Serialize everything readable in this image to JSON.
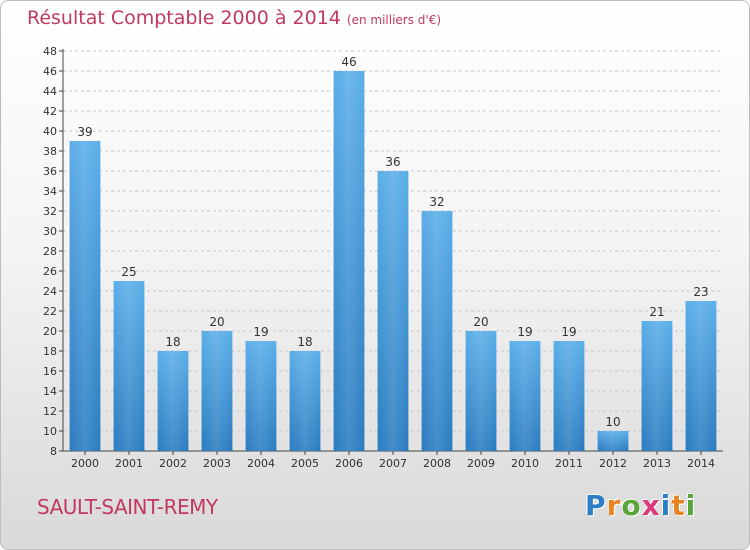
{
  "chart_data": {
    "type": "bar",
    "title": "Résultat Comptable 2000 à 2014",
    "subtitle": "(en milliers d'€)",
    "categories": [
      "2000",
      "2001",
      "2002",
      "2003",
      "2004",
      "2005",
      "2006",
      "2007",
      "2008",
      "2009",
      "2010",
      "2011",
      "2012",
      "2013",
      "2014"
    ],
    "values": [
      39,
      25,
      18,
      20,
      19,
      18,
      46,
      36,
      32,
      20,
      19,
      19,
      10,
      21,
      23
    ],
    "ylim": [
      8,
      48
    ],
    "ytick_step": 2,
    "xlabel": "",
    "ylabel": "",
    "grid": true,
    "bar_color_top": "#5aaee8",
    "bar_color_bottom": "#2a7cc0"
  },
  "footer": {
    "location": "SAULT-SAINT-REMY",
    "logo_letters": [
      "P",
      "r",
      "o",
      "x",
      "i",
      "t",
      "i"
    ]
  }
}
